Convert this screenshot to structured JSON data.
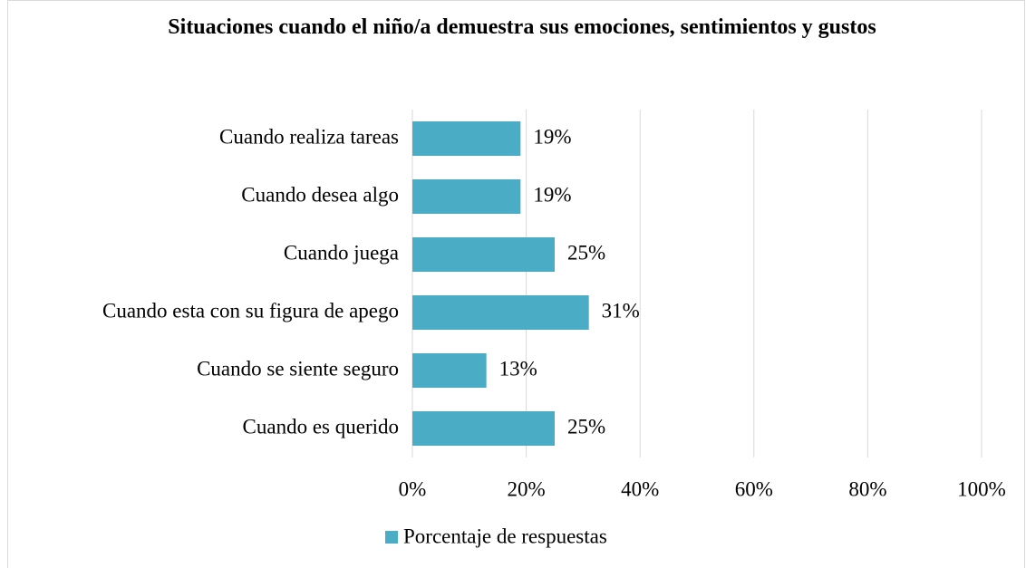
{
  "chart_data": {
    "type": "bar",
    "orientation": "horizontal",
    "title": "Situaciones cuando el niño/a demuestra sus emociones, sentimientos y gustos",
    "categories": [
      "Cuando realiza tareas",
      "Cuando desea algo ",
      "Cuando juega",
      "Cuando esta con su figura de apego",
      "Cuando se siente seguro",
      "Cuando es querido"
    ],
    "series": [
      {
        "name": "Porcentaje de respuestas",
        "color": "#4bacc6",
        "values": [
          19,
          19,
          25,
          31,
          13,
          25
        ],
        "value_labels": [
          "19%",
          "19%",
          "25%",
          "31%",
          "13%",
          "25%"
        ]
      }
    ],
    "xlim": [
      0,
      100
    ],
    "xticks": [
      {
        "value": 0,
        "label": "0%"
      },
      {
        "value": 20,
        "label": "20%"
      },
      {
        "value": 40,
        "label": "40%"
      },
      {
        "value": 60,
        "label": "60%"
      },
      {
        "value": 80,
        "label": "80%"
      },
      {
        "value": 100,
        "label": "100%"
      }
    ],
    "grid": true,
    "legend": "bottom"
  }
}
